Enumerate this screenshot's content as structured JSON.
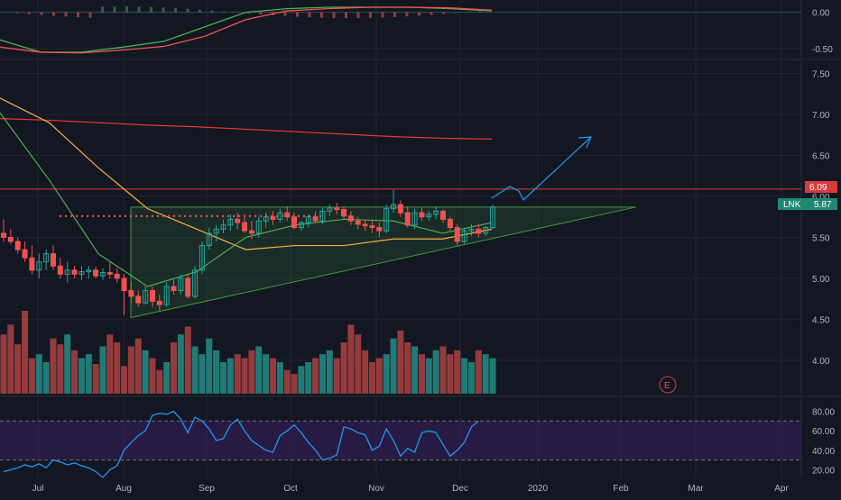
{
  "symbol": "LNK",
  "colors": {
    "background": "#131722",
    "grid": "#1f2433",
    "up": "#26a69a",
    "down": "#ef5350",
    "axis_text": "#b2b5be",
    "price_label_bg": "#1f8a70",
    "resistance_label_bg": "#d83b3b",
    "ma_200": "#e53935",
    "ma_50": "#f5b041",
    "ma_20": "#4caf50",
    "rsi_band": "#3b1f5e",
    "rsi_line": "#2196f3",
    "triangle": "#3d9a3d",
    "projection": "#2196f3"
  },
  "x_axis": {
    "labels": [
      "Jul",
      "Aug",
      "Sep",
      "Oct",
      "Nov",
      "Dec",
      "2020",
      "Feb",
      "Mar",
      "Apr"
    ]
  },
  "earnings_marker": "E",
  "price_label": {
    "symbol": "LNK",
    "value": "5.87"
  },
  "resistance_label": {
    "value": "6.09"
  },
  "chart_data": [
    {
      "type": "line",
      "panel": "macd",
      "y_ticks": [
        "0.00",
        "-0.50"
      ],
      "ylim": [
        -0.65,
        0.12
      ],
      "series": [
        {
          "x": [
            "Jun 20",
            "Jul 5",
            "Jul 15",
            "Aug 1",
            "Aug 15",
            "Sep 1",
            "Sep 15",
            "Oct 1",
            "Oct 15",
            "Nov 1",
            "Nov 15",
            "Dec 1",
            "Dec 11"
          ],
          "values": [
            -0.38,
            -0.55,
            -0.55,
            -0.48,
            -0.4,
            -0.2,
            0.0,
            0.05,
            0.07,
            0.07,
            0.07,
            0.05,
            0.02
          ]
        },
        {
          "x": [
            "Jun 20",
            "Jul 5",
            "Jul 15",
            "Aug 1",
            "Aug 15",
            "Sep 1",
            "Sep 15",
            "Oct 1",
            "Oct 15",
            "Nov 1",
            "Nov 15",
            "Dec 1",
            "Dec 11"
          ],
          "values": [
            -0.48,
            -0.55,
            -0.56,
            -0.52,
            -0.47,
            -0.33,
            -0.1,
            0.02,
            0.05,
            0.07,
            0.07,
            0.06,
            0.03
          ]
        }
      ]
    },
    {
      "type": "candlestick",
      "panel": "price",
      "y_ticks": [
        "7.50",
        "7.00",
        "6.50",
        "6.00",
        "5.50",
        "5.00",
        "4.50",
        "4.00"
      ],
      "ylim": [
        3.58,
        7.65
      ],
      "x_ticks": [
        "Jul",
        "Aug",
        "Sep",
        "Oct",
        "Nov",
        "Dec",
        "2020",
        "Feb",
        "Mar",
        "Apr"
      ],
      "candles": [
        [
          5.55,
          5.72,
          5.45,
          5.5
        ],
        [
          5.5,
          5.6,
          5.42,
          5.45
        ],
        [
          5.45,
          5.5,
          5.3,
          5.35
        ],
        [
          5.35,
          5.45,
          5.2,
          5.25
        ],
        [
          5.25,
          5.4,
          5.05,
          5.1
        ],
        [
          5.1,
          5.3,
          5.0,
          5.2
        ],
        [
          5.2,
          5.35,
          5.1,
          5.3
        ],
        [
          5.3,
          5.4,
          5.1,
          5.15
        ],
        [
          5.15,
          5.25,
          5.0,
          5.05
        ],
        [
          5.05,
          5.2,
          4.95,
          5.1
        ],
        [
          5.1,
          5.15,
          5.0,
          5.05
        ],
        [
          5.05,
          5.15,
          4.98,
          5.08
        ],
        [
          5.08,
          5.15,
          5.0,
          5.1
        ],
        [
          5.1,
          5.14,
          5.0,
          5.03
        ],
        [
          5.03,
          5.12,
          4.98,
          5.07
        ],
        [
          5.07,
          5.2,
          5.0,
          5.05
        ],
        [
          5.05,
          5.12,
          4.95,
          5.0
        ],
        [
          5.0,
          5.05,
          4.55,
          4.85
        ],
        [
          4.85,
          4.95,
          4.7,
          4.78
        ],
        [
          4.78,
          4.85,
          4.65,
          4.7
        ],
        [
          4.7,
          4.9,
          4.68,
          4.85
        ],
        [
          4.85,
          4.9,
          4.65,
          4.72
        ],
        [
          4.72,
          4.8,
          4.6,
          4.68
        ],
        [
          4.68,
          4.95,
          4.65,
          4.9
        ],
        [
          4.9,
          5.0,
          4.8,
          4.85
        ],
        [
          4.85,
          5.05,
          4.8,
          5.0
        ],
        [
          5.0,
          5.05,
          4.75,
          4.78
        ],
        [
          4.78,
          5.15,
          4.75,
          5.1
        ],
        [
          5.1,
          5.45,
          5.05,
          5.4
        ],
        [
          5.4,
          5.62,
          5.35,
          5.55
        ],
        [
          5.55,
          5.65,
          5.45,
          5.6
        ],
        [
          5.6,
          5.72,
          5.55,
          5.65
        ],
        [
          5.65,
          5.78,
          5.58,
          5.72
        ],
        [
          5.72,
          5.8,
          5.6,
          5.68
        ],
        [
          5.68,
          5.76,
          5.55,
          5.58
        ],
        [
          5.58,
          5.7,
          5.48,
          5.55
        ],
        [
          5.55,
          5.75,
          5.5,
          5.7
        ],
        [
          5.7,
          5.8,
          5.62,
          5.75
        ],
        [
          5.75,
          5.82,
          5.65,
          5.72
        ],
        [
          5.72,
          5.85,
          5.68,
          5.8
        ],
        [
          5.8,
          5.88,
          5.7,
          5.75
        ],
        [
          5.75,
          5.8,
          5.6,
          5.62
        ],
        [
          5.62,
          5.7,
          5.58,
          5.68
        ],
        [
          5.68,
          5.78,
          5.62,
          5.75
        ],
        [
          5.75,
          5.82,
          5.68,
          5.7
        ],
        [
          5.7,
          5.86,
          5.66,
          5.82
        ],
        [
          5.82,
          5.9,
          5.76,
          5.86
        ],
        [
          5.86,
          5.92,
          5.78,
          5.84
        ],
        [
          5.84,
          5.88,
          5.72,
          5.76
        ],
        [
          5.76,
          5.82,
          5.65,
          5.7
        ],
        [
          5.7,
          5.75,
          5.6,
          5.66
        ],
        [
          5.66,
          5.72,
          5.58,
          5.64
        ],
        [
          5.64,
          5.7,
          5.55,
          5.62
        ],
        [
          5.62,
          5.68,
          5.5,
          5.58
        ],
        [
          5.58,
          5.9,
          5.55,
          5.85
        ],
        [
          5.85,
          6.08,
          5.8,
          5.9
        ],
        [
          5.9,
          5.95,
          5.75,
          5.8
        ],
        [
          5.8,
          5.88,
          5.62,
          5.65
        ],
        [
          5.65,
          5.85,
          5.6,
          5.8
        ],
        [
          5.8,
          5.86,
          5.7,
          5.75
        ],
        [
          5.75,
          5.82,
          5.7,
          5.78
        ],
        [
          5.78,
          5.88,
          5.72,
          5.82
        ],
        [
          5.82,
          5.84,
          5.68,
          5.72
        ],
        [
          5.72,
          5.75,
          5.58,
          5.62
        ],
        [
          5.62,
          5.66,
          5.4,
          5.45
        ],
        [
          5.45,
          5.62,
          5.42,
          5.58
        ],
        [
          5.58,
          5.66,
          5.52,
          5.6
        ],
        [
          5.6,
          5.66,
          5.5,
          5.55
        ],
        [
          5.55,
          5.64,
          5.52,
          5.62
        ],
        [
          5.62,
          5.9,
          5.6,
          5.87
        ]
      ],
      "moving_averages": [
        {
          "values": [
            6.95,
            6.93,
            6.9,
            6.87,
            6.85,
            6.82,
            6.79,
            6.76,
            6.73,
            6.71,
            6.7
          ]
        },
        {
          "values": [
            7.2,
            6.9,
            6.35,
            5.85,
            5.6,
            5.35,
            5.4,
            5.4,
            5.48,
            5.48,
            5.6
          ]
        },
        {
          "values": [
            7.02,
            6.2,
            5.3,
            4.9,
            5.08,
            5.5,
            5.65,
            5.72,
            5.7,
            5.55,
            5.68
          ]
        }
      ],
      "resistance": 6.09,
      "last_price": 5.87,
      "triangle": {
        "top": 5.87,
        "apex_x": "Jan 20",
        "bottom_start": 4.52,
        "start_x": "Aug 1"
      }
    },
    {
      "type": "bar",
      "panel": "volume",
      "values": [
        30,
        35,
        25,
        42,
        18,
        20,
        16,
        28,
        25,
        30,
        22,
        18,
        20,
        15,
        24,
        30,
        26,
        14,
        24,
        28,
        22,
        18,
        12,
        16,
        26,
        30,
        34,
        24,
        20,
        28,
        22,
        16,
        18,
        20,
        18,
        22,
        24,
        20,
        18,
        16,
        12,
        10,
        14,
        16,
        18,
        20,
        22,
        18,
        26,
        35,
        30,
        22,
        16,
        18,
        20,
        28,
        32,
        26,
        24,
        20,
        18,
        22,
        24,
        20,
        22,
        18,
        16,
        22,
        20,
        18
      ]
    },
    {
      "type": "line",
      "panel": "rsi",
      "y_ticks": [
        "80.00",
        "60.00",
        "40.00",
        "20.00"
      ],
      "ylim": [
        12,
        88
      ],
      "band": [
        30,
        70
      ],
      "series": [
        {
          "values": [
            18,
            20,
            22,
            25,
            23,
            26,
            22,
            30,
            28,
            25,
            27,
            24,
            22,
            18,
            12,
            20,
            24,
            40,
            48,
            55,
            60,
            76,
            78,
            77,
            80,
            72,
            58,
            74,
            70,
            62,
            50,
            52,
            66,
            72,
            60,
            50,
            45,
            40,
            38,
            55,
            60,
            66,
            58,
            48,
            40,
            30,
            32,
            35,
            64,
            62,
            58,
            56,
            40,
            44,
            62,
            50,
            34,
            42,
            38,
            58,
            60,
            58,
            46,
            34,
            40,
            48,
            64,
            70
          ]
        }
      ]
    }
  ]
}
